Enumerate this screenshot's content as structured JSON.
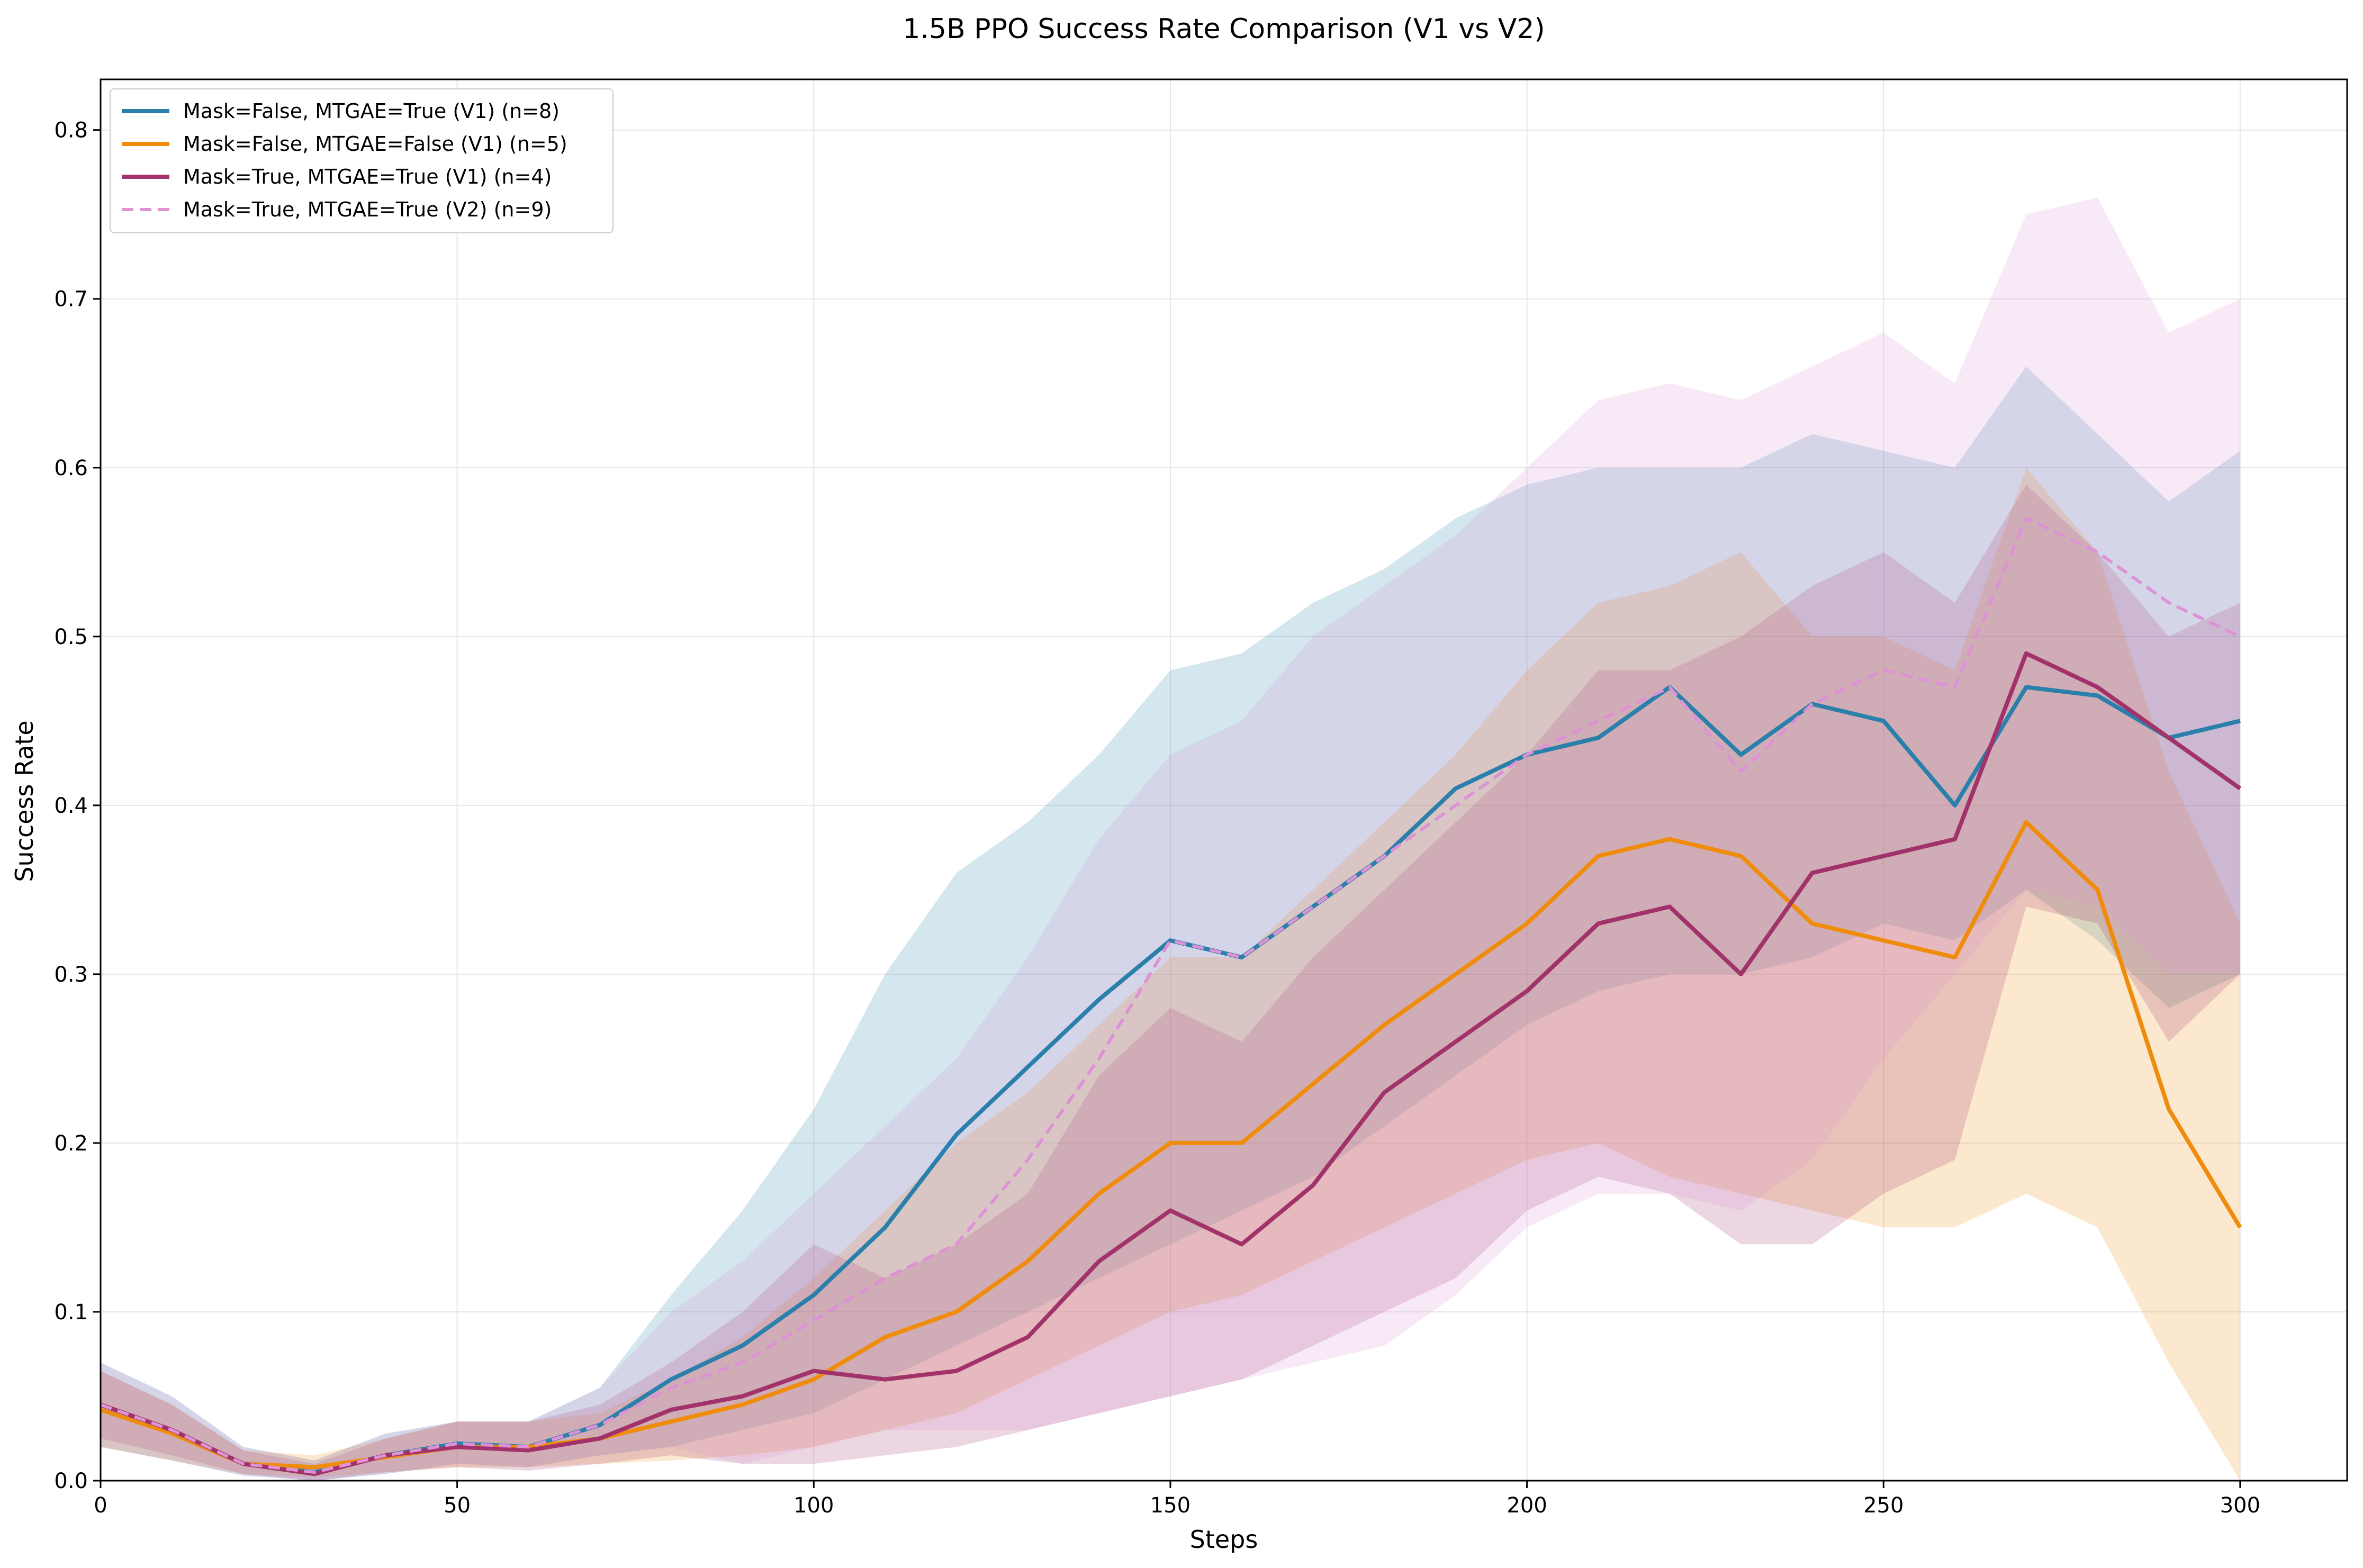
{
  "chart_data": {
    "type": "line",
    "title": "1.5B PPO Success Rate Comparison (V1 vs V2)",
    "xlabel": "Steps",
    "ylabel": "Success Rate",
    "xlim": [
      0,
      315
    ],
    "ylim": [
      0,
      0.83
    ],
    "x_ticks": [
      0,
      50,
      100,
      150,
      200,
      250,
      300
    ],
    "y_ticks": [
      0.0,
      0.1,
      0.2,
      0.3,
      0.4,
      0.5,
      0.6,
      0.7,
      0.8
    ],
    "grid": true,
    "legend_position": "top-left",
    "x": [
      0,
      10,
      20,
      30,
      40,
      50,
      60,
      70,
      80,
      90,
      100,
      110,
      120,
      130,
      140,
      150,
      160,
      170,
      180,
      190,
      200,
      210,
      220,
      230,
      240,
      250,
      260,
      270,
      280,
      290,
      300
    ],
    "series": [
      {
        "name": "Mask=False, MTGAE=True (V1) (n=8)",
        "color": "#2a80aa",
        "dashed": false,
        "values": [
          0.045,
          0.03,
          0.01,
          0.005,
          0.015,
          0.022,
          0.02,
          0.033,
          0.06,
          0.08,
          0.11,
          0.15,
          0.205,
          0.245,
          0.285,
          0.32,
          0.31,
          0.34,
          0.37,
          0.41,
          0.43,
          0.44,
          0.47,
          0.43,
          0.46,
          0.45,
          0.4,
          0.47,
          0.465,
          0.44,
          0.45
        ],
        "lower": [
          0.02,
          0.012,
          0.003,
          0.0,
          0.004,
          0.01,
          0.008,
          0.015,
          0.02,
          0.03,
          0.04,
          0.06,
          0.08,
          0.1,
          0.12,
          0.14,
          0.16,
          0.18,
          0.21,
          0.24,
          0.27,
          0.29,
          0.3,
          0.3,
          0.31,
          0.33,
          0.32,
          0.35,
          0.32,
          0.28,
          0.3
        ],
        "upper": [
          0.07,
          0.05,
          0.02,
          0.012,
          0.028,
          0.035,
          0.035,
          0.055,
          0.11,
          0.16,
          0.22,
          0.3,
          0.36,
          0.39,
          0.43,
          0.48,
          0.49,
          0.52,
          0.54,
          0.57,
          0.59,
          0.6,
          0.6,
          0.6,
          0.62,
          0.61,
          0.6,
          0.66,
          0.62,
          0.58,
          0.61
        ]
      },
      {
        "name": "Mask=False, MTGAE=False (V1) (n=5)",
        "color": "#ef8c0c",
        "dashed": false,
        "values": [
          0.042,
          0.028,
          0.01,
          0.008,
          0.014,
          0.02,
          0.02,
          0.025,
          0.035,
          0.045,
          0.06,
          0.085,
          0.1,
          0.13,
          0.17,
          0.2,
          0.2,
          0.235,
          0.27,
          0.3,
          0.33,
          0.37,
          0.38,
          0.37,
          0.33,
          0.32,
          0.31,
          0.39,
          0.35,
          0.22,
          0.15
        ],
        "lower": [
          0.02,
          0.012,
          0.004,
          0.002,
          0.005,
          0.008,
          0.008,
          0.01,
          0.012,
          0.015,
          0.02,
          0.03,
          0.04,
          0.06,
          0.08,
          0.1,
          0.11,
          0.13,
          0.15,
          0.17,
          0.19,
          0.2,
          0.18,
          0.17,
          0.16,
          0.15,
          0.15,
          0.17,
          0.15,
          0.07,
          0.0
        ],
        "upper": [
          0.065,
          0.045,
          0.018,
          0.015,
          0.025,
          0.035,
          0.035,
          0.04,
          0.06,
          0.085,
          0.12,
          0.16,
          0.2,
          0.23,
          0.27,
          0.31,
          0.31,
          0.35,
          0.39,
          0.43,
          0.48,
          0.52,
          0.53,
          0.55,
          0.5,
          0.5,
          0.48,
          0.6,
          0.55,
          0.42,
          0.33
        ]
      },
      {
        "name": "Mask=True, MTGAE=True (V1) (n=4)",
        "color": "#a1336a",
        "dashed": false,
        "values": [
          0.045,
          0.03,
          0.01,
          0.004,
          0.015,
          0.02,
          0.018,
          0.025,
          0.042,
          0.05,
          0.065,
          0.06,
          0.065,
          0.085,
          0.13,
          0.16,
          0.14,
          0.175,
          0.23,
          0.26,
          0.29,
          0.33,
          0.34,
          0.3,
          0.36,
          0.37,
          0.38,
          0.49,
          0.47,
          0.44,
          0.41
        ],
        "lower": [
          0.025,
          0.015,
          0.004,
          0.0,
          0.005,
          0.008,
          0.006,
          0.01,
          0.015,
          0.01,
          0.01,
          0.015,
          0.02,
          0.03,
          0.04,
          0.05,
          0.06,
          0.08,
          0.1,
          0.12,
          0.16,
          0.18,
          0.17,
          0.14,
          0.14,
          0.17,
          0.19,
          0.34,
          0.33,
          0.26,
          0.3
        ],
        "upper": [
          0.065,
          0.045,
          0.018,
          0.01,
          0.025,
          0.035,
          0.035,
          0.045,
          0.07,
          0.1,
          0.14,
          0.12,
          0.14,
          0.17,
          0.24,
          0.28,
          0.26,
          0.31,
          0.35,
          0.39,
          0.43,
          0.48,
          0.48,
          0.5,
          0.53,
          0.55,
          0.52,
          0.59,
          0.55,
          0.5,
          0.52
        ]
      },
      {
        "name": "Mask=True, MTGAE=True (V2) (n=9)",
        "color": "#dd92d6",
        "dashed": true,
        "values": [
          0.045,
          0.03,
          0.01,
          0.005,
          0.015,
          0.022,
          0.02,
          0.033,
          0.055,
          0.07,
          0.095,
          0.12,
          0.14,
          0.19,
          0.25,
          0.32,
          0.31,
          0.34,
          0.37,
          0.4,
          0.43,
          0.45,
          0.47,
          0.42,
          0.46,
          0.48,
          0.47,
          0.57,
          0.55,
          0.52,
          0.5
        ],
        "lower": [
          0.02,
          0.012,
          0.003,
          0.0,
          0.004,
          0.01,
          0.008,
          0.015,
          0.02,
          0.01,
          0.02,
          0.03,
          0.03,
          0.03,
          0.04,
          0.05,
          0.06,
          0.07,
          0.08,
          0.11,
          0.15,
          0.17,
          0.17,
          0.16,
          0.19,
          0.25,
          0.3,
          0.35,
          0.34,
          0.3,
          0.3
        ],
        "upper": [
          0.07,
          0.05,
          0.02,
          0.012,
          0.028,
          0.035,
          0.035,
          0.055,
          0.1,
          0.13,
          0.17,
          0.21,
          0.25,
          0.31,
          0.38,
          0.43,
          0.45,
          0.5,
          0.53,
          0.56,
          0.6,
          0.64,
          0.65,
          0.64,
          0.66,
          0.68,
          0.65,
          0.75,
          0.76,
          0.68,
          0.7
        ]
      }
    ]
  }
}
